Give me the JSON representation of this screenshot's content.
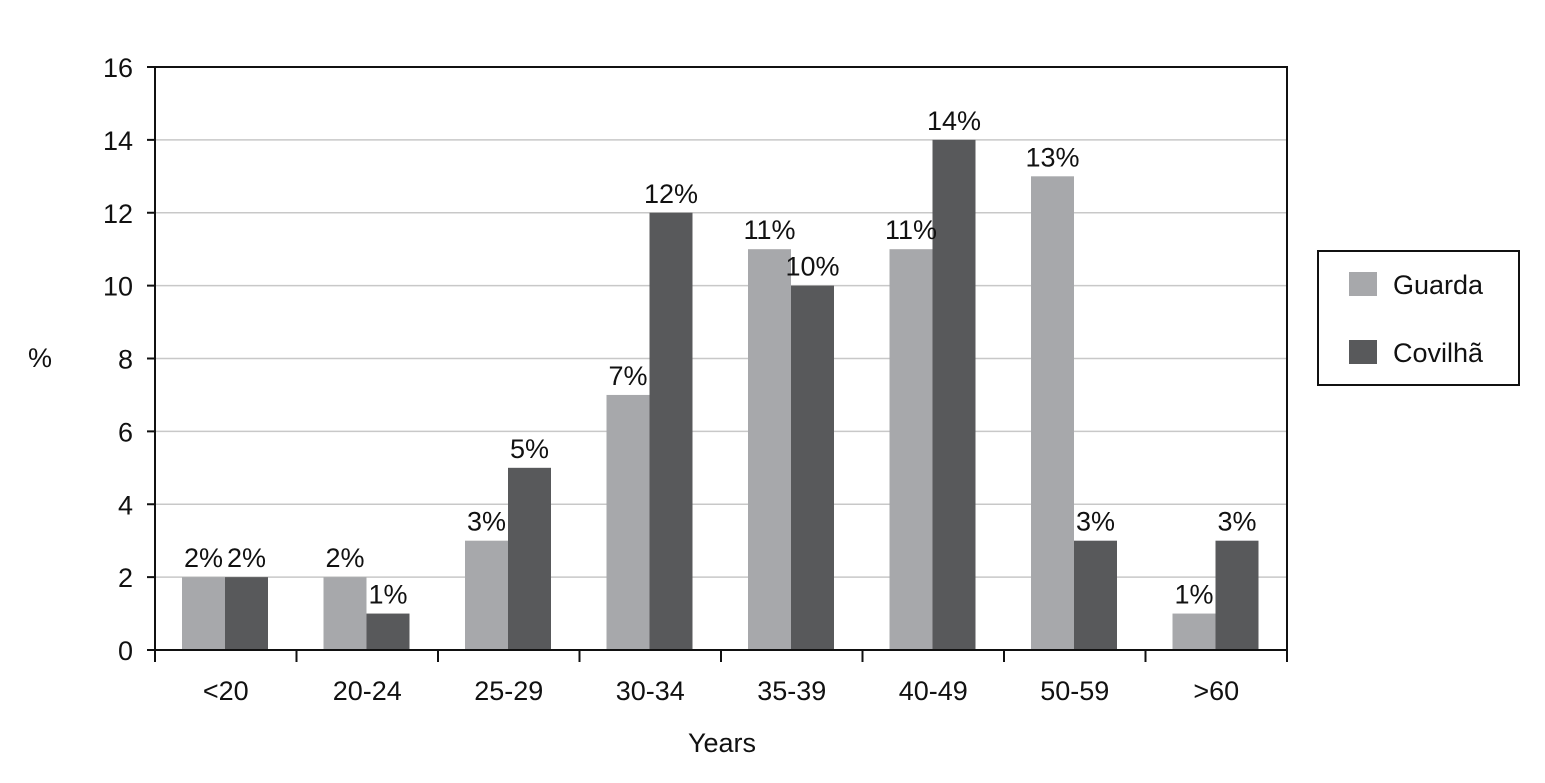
{
  "chart_data": {
    "type": "bar",
    "title": "",
    "xlabel": "Years",
    "ylabel": "%",
    "ylim": [
      0,
      16
    ],
    "yticks": [
      0,
      2,
      4,
      6,
      8,
      10,
      12,
      14,
      16
    ],
    "grid": true,
    "legend_position": "right",
    "categories": [
      "<20",
      "20-24",
      "25-29",
      "30-34",
      "35-39",
      "40-49",
      "50-59",
      ">60"
    ],
    "series": [
      {
        "name": "Guarda",
        "color": "#a7a8ab",
        "values": [
          2,
          2,
          3,
          7,
          11,
          11,
          13,
          1
        ],
        "labels": [
          "2%",
          "2%",
          "3%",
          "7%",
          "11%",
          "11%",
          "13%",
          "1%"
        ]
      },
      {
        "name": "Covilhã",
        "color": "#58595b",
        "values": [
          2,
          1,
          5,
          12,
          10,
          14,
          3,
          3
        ],
        "labels": [
          "2%",
          "1%",
          "5%",
          "12%",
          "10%",
          "14%",
          "3%",
          "3%"
        ]
      }
    ]
  }
}
